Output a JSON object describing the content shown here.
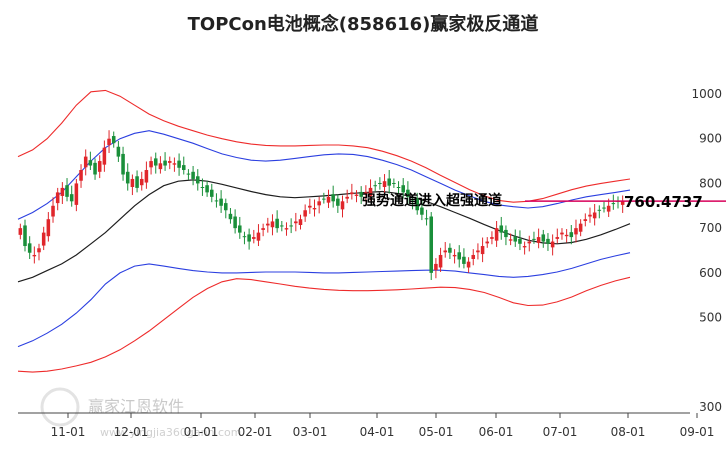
{
  "chart_data": {
    "type": "candlestick",
    "title": "TOPCon电池概念(858616)赢家极反通道",
    "x_ticks": [
      "11-01",
      "12-01",
      "01-01",
      "02-01",
      "03-01",
      "04-01",
      "05-01",
      "06-01",
      "07-01",
      "08-01",
      "09-01"
    ],
    "y_ticks": [
      300,
      500,
      600,
      700,
      800,
      900,
      1000
    ],
    "ylim": [
      290,
      1040
    ],
    "annotation": "强势通道进入超强通道",
    "last_price_label": "760.4737",
    "last_price": 760.4737,
    "series_ohlc_note": "approximate daily closes sampled from chart",
    "closes": [
      700,
      660,
      645,
      640,
      655,
      690,
      720,
      750,
      780,
      790,
      770,
      760,
      800,
      830,
      860,
      840,
      820,
      850,
      880,
      900,
      890,
      860,
      820,
      800,
      810,
      790,
      810,
      830,
      850,
      840,
      845,
      840,
      850,
      845,
      835,
      830,
      820,
      810,
      800,
      790,
      780,
      770,
      760,
      750,
      740,
      720,
      700,
      690,
      680,
      670,
      680,
      690,
      700,
      710,
      715,
      700,
      705,
      700,
      705,
      715,
      720,
      740,
      750,
      745,
      760,
      765,
      770,
      760,
      750,
      760,
      770,
      780,
      775,
      770,
      780,
      790,
      795,
      800,
      805,
      795,
      800,
      790,
      780,
      770,
      760,
      740,
      730,
      720,
      600,
      620,
      640,
      650,
      645,
      640,
      630,
      620,
      625,
      640,
      650,
      660,
      670,
      680,
      700,
      690,
      680,
      675,
      670,
      665,
      660,
      670,
      675,
      680,
      670,
      665,
      670,
      680,
      690,
      685,
      680,
      700,
      710,
      720,
      730,
      735,
      740,
      745,
      750,
      755,
      760,
      760
    ],
    "channel": {
      "mid_black": [
        580,
        590,
        605,
        620,
        640,
        665,
        690,
        720,
        750,
        775,
        795,
        805,
        808,
        805,
        798,
        790,
        782,
        775,
        770,
        768,
        770,
        772,
        775,
        778,
        780,
        782,
        778,
        770,
        760,
        748,
        735,
        722,
        708,
        695,
        683,
        673,
        667,
        665,
        668,
        675,
        685,
        697,
        710
      ],
      "upper_blue": [
        720,
        735,
        755,
        780,
        815,
        850,
        880,
        900,
        912,
        918,
        910,
        900,
        890,
        878,
        866,
        858,
        852,
        850,
        852,
        856,
        860,
        864,
        866,
        865,
        860,
        852,
        842,
        830,
        815,
        800,
        785,
        772,
        760,
        752,
        748,
        745,
        748,
        755,
        763,
        770,
        775,
        780,
        785
      ],
      "lower_blue": [
        435,
        448,
        465,
        485,
        510,
        540,
        575,
        600,
        615,
        620,
        615,
        610,
        605,
        602,
        600,
        600,
        601,
        602,
        602,
        602,
        601,
        600,
        600,
        601,
        602,
        603,
        604,
        605,
        606,
        606,
        604,
        600,
        596,
        592,
        590,
        592,
        596,
        602,
        610,
        620,
        630,
        638,
        645
      ],
      "upper_red": [
        860,
        875,
        900,
        935,
        975,
        1005,
        1008,
        995,
        975,
        955,
        940,
        928,
        918,
        908,
        900,
        893,
        888,
        885,
        884,
        884,
        885,
        886,
        886,
        884,
        880,
        872,
        862,
        850,
        835,
        818,
        802,
        786,
        772,
        762,
        758,
        760,
        766,
        776,
        786,
        794,
        800,
        805,
        810
      ],
      "lower_red": [
        380,
        378,
        380,
        385,
        392,
        400,
        412,
        428,
        448,
        470,
        495,
        520,
        545,
        565,
        580,
        587,
        585,
        580,
        575,
        570,
        566,
        563,
        561,
        560,
        560,
        561,
        562,
        564,
        566,
        568,
        567,
        563,
        556,
        545,
        533,
        527,
        528,
        535,
        546,
        560,
        572,
        582,
        590
      ]
    },
    "colors": {
      "up": "#e0262b",
      "down": "#1a8f3a",
      "mid": "#1e1e1e",
      "blue": "#2b3fe0",
      "red": "#ee2b2b",
      "marker": "#d8005a"
    }
  },
  "watermark": {
    "logo_text": "赢家江恩软件",
    "url_text": "www.yingjia360gann.com"
  }
}
